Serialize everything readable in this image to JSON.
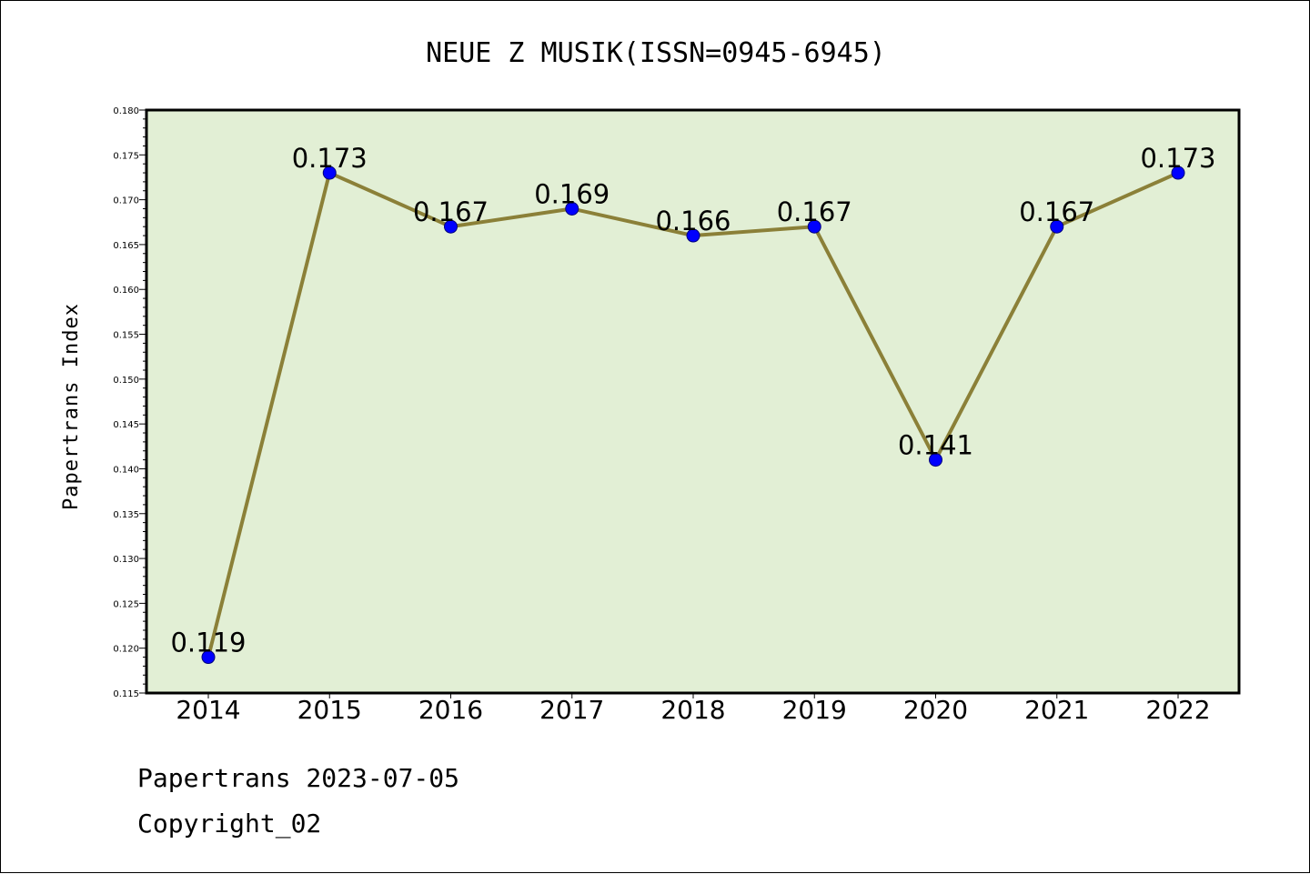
{
  "chart_data": {
    "type": "line",
    "title": "NEUE Z MUSIK(ISSN=0945-6945)",
    "xlabel": "",
    "ylabel": "Papertrans Index",
    "categories": [
      "2014",
      "2015",
      "2016",
      "2017",
      "2018",
      "2019",
      "2020",
      "2021",
      "2022"
    ],
    "values": [
      0.119,
      0.173,
      0.167,
      0.169,
      0.166,
      0.167,
      0.141,
      0.167,
      0.173
    ],
    "data_labels": [
      "0.119",
      "0.173",
      "0.167",
      "0.169",
      "0.166",
      "0.167",
      "0.141",
      "0.167",
      "0.173"
    ],
    "ylim": [
      0.115,
      0.18
    ],
    "yticks": [
      "0.115",
      "0.120",
      "0.125",
      "0.130",
      "0.135",
      "0.140",
      "0.145",
      "0.150",
      "0.155",
      "0.160",
      "0.165",
      "0.170",
      "0.175",
      "0.180"
    ],
    "grid": false,
    "legend": "none",
    "colors": {
      "plot_background": "#e2efd5",
      "line": "#8b8038",
      "marker": "#0000ff"
    }
  },
  "footer": {
    "line1": "Papertrans 2023-07-05",
    "line2": "Copyright_02"
  }
}
